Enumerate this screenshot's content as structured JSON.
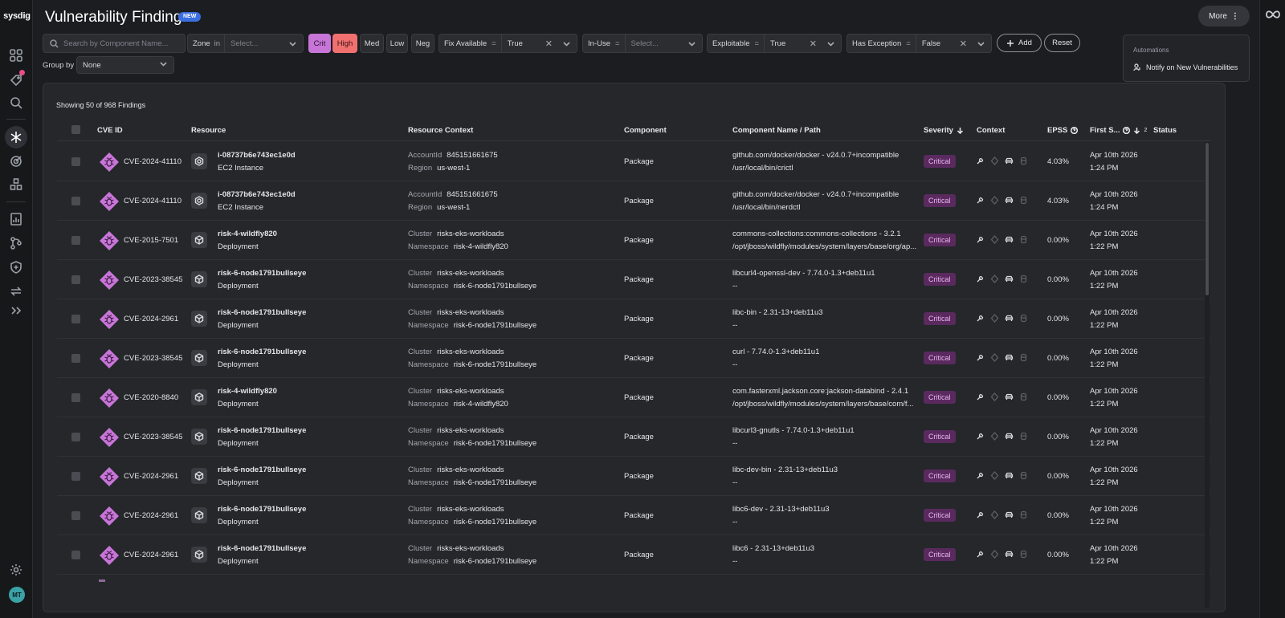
{
  "app": {
    "logo": "sysdig",
    "user_initials": "MT"
  },
  "header": {
    "title": "Vulnerability Findings",
    "badge": "NEW",
    "more_label": "More",
    "more_dots": "⋮"
  },
  "menu": {
    "section": "Automations",
    "item": "Notify on New Vulnerabilities"
  },
  "filters": {
    "search_placeholder": "Search by Component Name...",
    "zone": {
      "label": "Zone",
      "op": "in",
      "value": "Select..."
    },
    "severity": [
      "Crit",
      "High",
      "Med",
      "Low",
      "Neg"
    ],
    "fix_available": {
      "label": "Fix Available",
      "op": "=",
      "value": "True"
    },
    "in_use": {
      "label": "In-Use",
      "op": "=",
      "value": "Select..."
    },
    "exploitable": {
      "label": "Exploitable",
      "op": "=",
      "value": "True"
    },
    "has_exception": {
      "label": "Has Exception",
      "op": "=",
      "value": "False"
    },
    "add_label": "Add",
    "reset_label": "Reset",
    "clear_glyph": "✕"
  },
  "groupby": {
    "label": "Group by",
    "value": "None"
  },
  "table": {
    "showing": "Showing 50 of 968 Findings",
    "headers": {
      "cve": "CVE ID",
      "resource": "Resource",
      "context": "Resource Context",
      "component": "Component",
      "path": "Component Name / Path",
      "severity": "Severity",
      "ctx": "Context",
      "epss": "EPSS",
      "first_seen": "First S...",
      "first_seen_sort": "2",
      "status": "Status"
    },
    "rows": [
      {
        "cve": "CVE-2024-41110",
        "resource": "i-08737b6e743ec1e0d",
        "type": "EC2 Instance",
        "icon": "ec2",
        "k1": "AccountId",
        "v1": "845151661675",
        "k2": "Region",
        "v2": "us-west-1",
        "component": "Package",
        "path1": "github.com/docker/docker - v24.0.7+incompatible",
        "path2": "/usr/local/bin/crictl",
        "severity": "Critical",
        "epss": "4.03%",
        "date": "Apr 10th 2026",
        "time": "1:24 PM"
      },
      {
        "cve": "CVE-2024-41110",
        "resource": "i-08737b6e743ec1e0d",
        "type": "EC2 Instance",
        "icon": "ec2",
        "k1": "AccountId",
        "v1": "845151661675",
        "k2": "Region",
        "v2": "us-west-1",
        "component": "Package",
        "path1": "github.com/docker/docker - v24.0.7+incompatible",
        "path2": "/usr/local/bin/nerdctl",
        "severity": "Critical",
        "epss": "4.03%",
        "date": "Apr 10th 2026",
        "time": "1:24 PM"
      },
      {
        "cve": "CVE-2015-7501",
        "resource": "risk-4-wildfly820",
        "type": "Deployment",
        "icon": "box",
        "k1": "Cluster",
        "v1": "risks-eks-workloads",
        "k2": "Namespace",
        "v2": "risk-4-wildfly820",
        "component": "Package",
        "path1": "commons-collections:commons-collections - 3.2.1",
        "path2": "/opt/jboss/wildfly/modules/system/layers/base/org/ap...",
        "severity": "Critical",
        "epss": "0.00%",
        "date": "Apr 10th 2026",
        "time": "1:22 PM"
      },
      {
        "cve": "CVE-2023-38545",
        "resource": "risk-6-node1791bullseye",
        "type": "Deployment",
        "icon": "box",
        "k1": "Cluster",
        "v1": "risks-eks-workloads",
        "k2": "Namespace",
        "v2": "risk-6-node1791bullseye",
        "component": "Package",
        "path1": "libcurl4-openssl-dev - 7.74.0-1.3+deb11u1",
        "path2": "--",
        "severity": "Critical",
        "epss": "0.00%",
        "date": "Apr 10th 2026",
        "time": "1:22 PM"
      },
      {
        "cve": "CVE-2024-2961",
        "resource": "risk-6-node1791bullseye",
        "type": "Deployment",
        "icon": "box",
        "k1": "Cluster",
        "v1": "risks-eks-workloads",
        "k2": "Namespace",
        "v2": "risk-6-node1791bullseye",
        "component": "Package",
        "path1": "libc-bin - 2.31-13+deb11u3",
        "path2": "--",
        "severity": "Critical",
        "epss": "0.00%",
        "date": "Apr 10th 2026",
        "time": "1:22 PM"
      },
      {
        "cve": "CVE-2023-38545",
        "resource": "risk-6-node1791bullseye",
        "type": "Deployment",
        "icon": "box",
        "k1": "Cluster",
        "v1": "risks-eks-workloads",
        "k2": "Namespace",
        "v2": "risk-6-node1791bullseye",
        "component": "Package",
        "path1": "curl - 7.74.0-1.3+deb11u1",
        "path2": "--",
        "severity": "Critical",
        "epss": "0.00%",
        "date": "Apr 10th 2026",
        "time": "1:22 PM"
      },
      {
        "cve": "CVE-2020-8840",
        "resource": "risk-4-wildfly820",
        "type": "Deployment",
        "icon": "box",
        "k1": "Cluster",
        "v1": "risks-eks-workloads",
        "k2": "Namespace",
        "v2": "risk-4-wildfly820",
        "component": "Package",
        "path1": "com.fasterxml.jackson.core:jackson-databind - 2.4.1",
        "path2": "/opt/jboss/wildfly/modules/system/layers/base/com/f...",
        "severity": "Critical",
        "epss": "0.00%",
        "date": "Apr 10th 2026",
        "time": "1:22 PM"
      },
      {
        "cve": "CVE-2023-38545",
        "resource": "risk-6-node1791bullseye",
        "type": "Deployment",
        "icon": "box",
        "k1": "Cluster",
        "v1": "risks-eks-workloads",
        "k2": "Namespace",
        "v2": "risk-6-node1791bullseye",
        "component": "Package",
        "path1": "libcurl3-gnutls - 7.74.0-1.3+deb11u1",
        "path2": "--",
        "severity": "Critical",
        "epss": "0.00%",
        "date": "Apr 10th 2026",
        "time": "1:22 PM"
      },
      {
        "cve": "CVE-2024-2961",
        "resource": "risk-6-node1791bullseye",
        "type": "Deployment",
        "icon": "box",
        "k1": "Cluster",
        "v1": "risks-eks-workloads",
        "k2": "Namespace",
        "v2": "risk-6-node1791bullseye",
        "component": "Package",
        "path1": "libc-dev-bin - 2.31-13+deb11u3",
        "path2": "--",
        "severity": "Critical",
        "epss": "0.00%",
        "date": "Apr 10th 2026",
        "time": "1:22 PM"
      },
      {
        "cve": "CVE-2024-2961",
        "resource": "risk-6-node1791bullseye",
        "type": "Deployment",
        "icon": "box",
        "k1": "Cluster",
        "v1": "risks-eks-workloads",
        "k2": "Namespace",
        "v2": "risk-6-node1791bullseye",
        "component": "Package",
        "path1": "libc6-dev - 2.31-13+deb11u3",
        "path2": "--",
        "severity": "Critical",
        "epss": "0.00%",
        "date": "Apr 10th 2026",
        "time": "1:22 PM"
      },
      {
        "cve": "CVE-2024-2961",
        "resource": "risk-6-node1791bullseye",
        "type": "Deployment",
        "icon": "box",
        "k1": "Cluster",
        "v1": "risks-eks-workloads",
        "k2": "Namespace",
        "v2": "risk-6-node1791bullseye",
        "component": "Package",
        "path1": "libc6 - 2.31-13+deb11u3",
        "path2": "--",
        "severity": "Critical",
        "epss": "0.00%",
        "date": "Apr 10th 2026",
        "time": "1:22 PM"
      }
    ]
  },
  "colors": {
    "critical": "#c875d8",
    "high": "#f07070",
    "accent": "#3b6fe0"
  }
}
